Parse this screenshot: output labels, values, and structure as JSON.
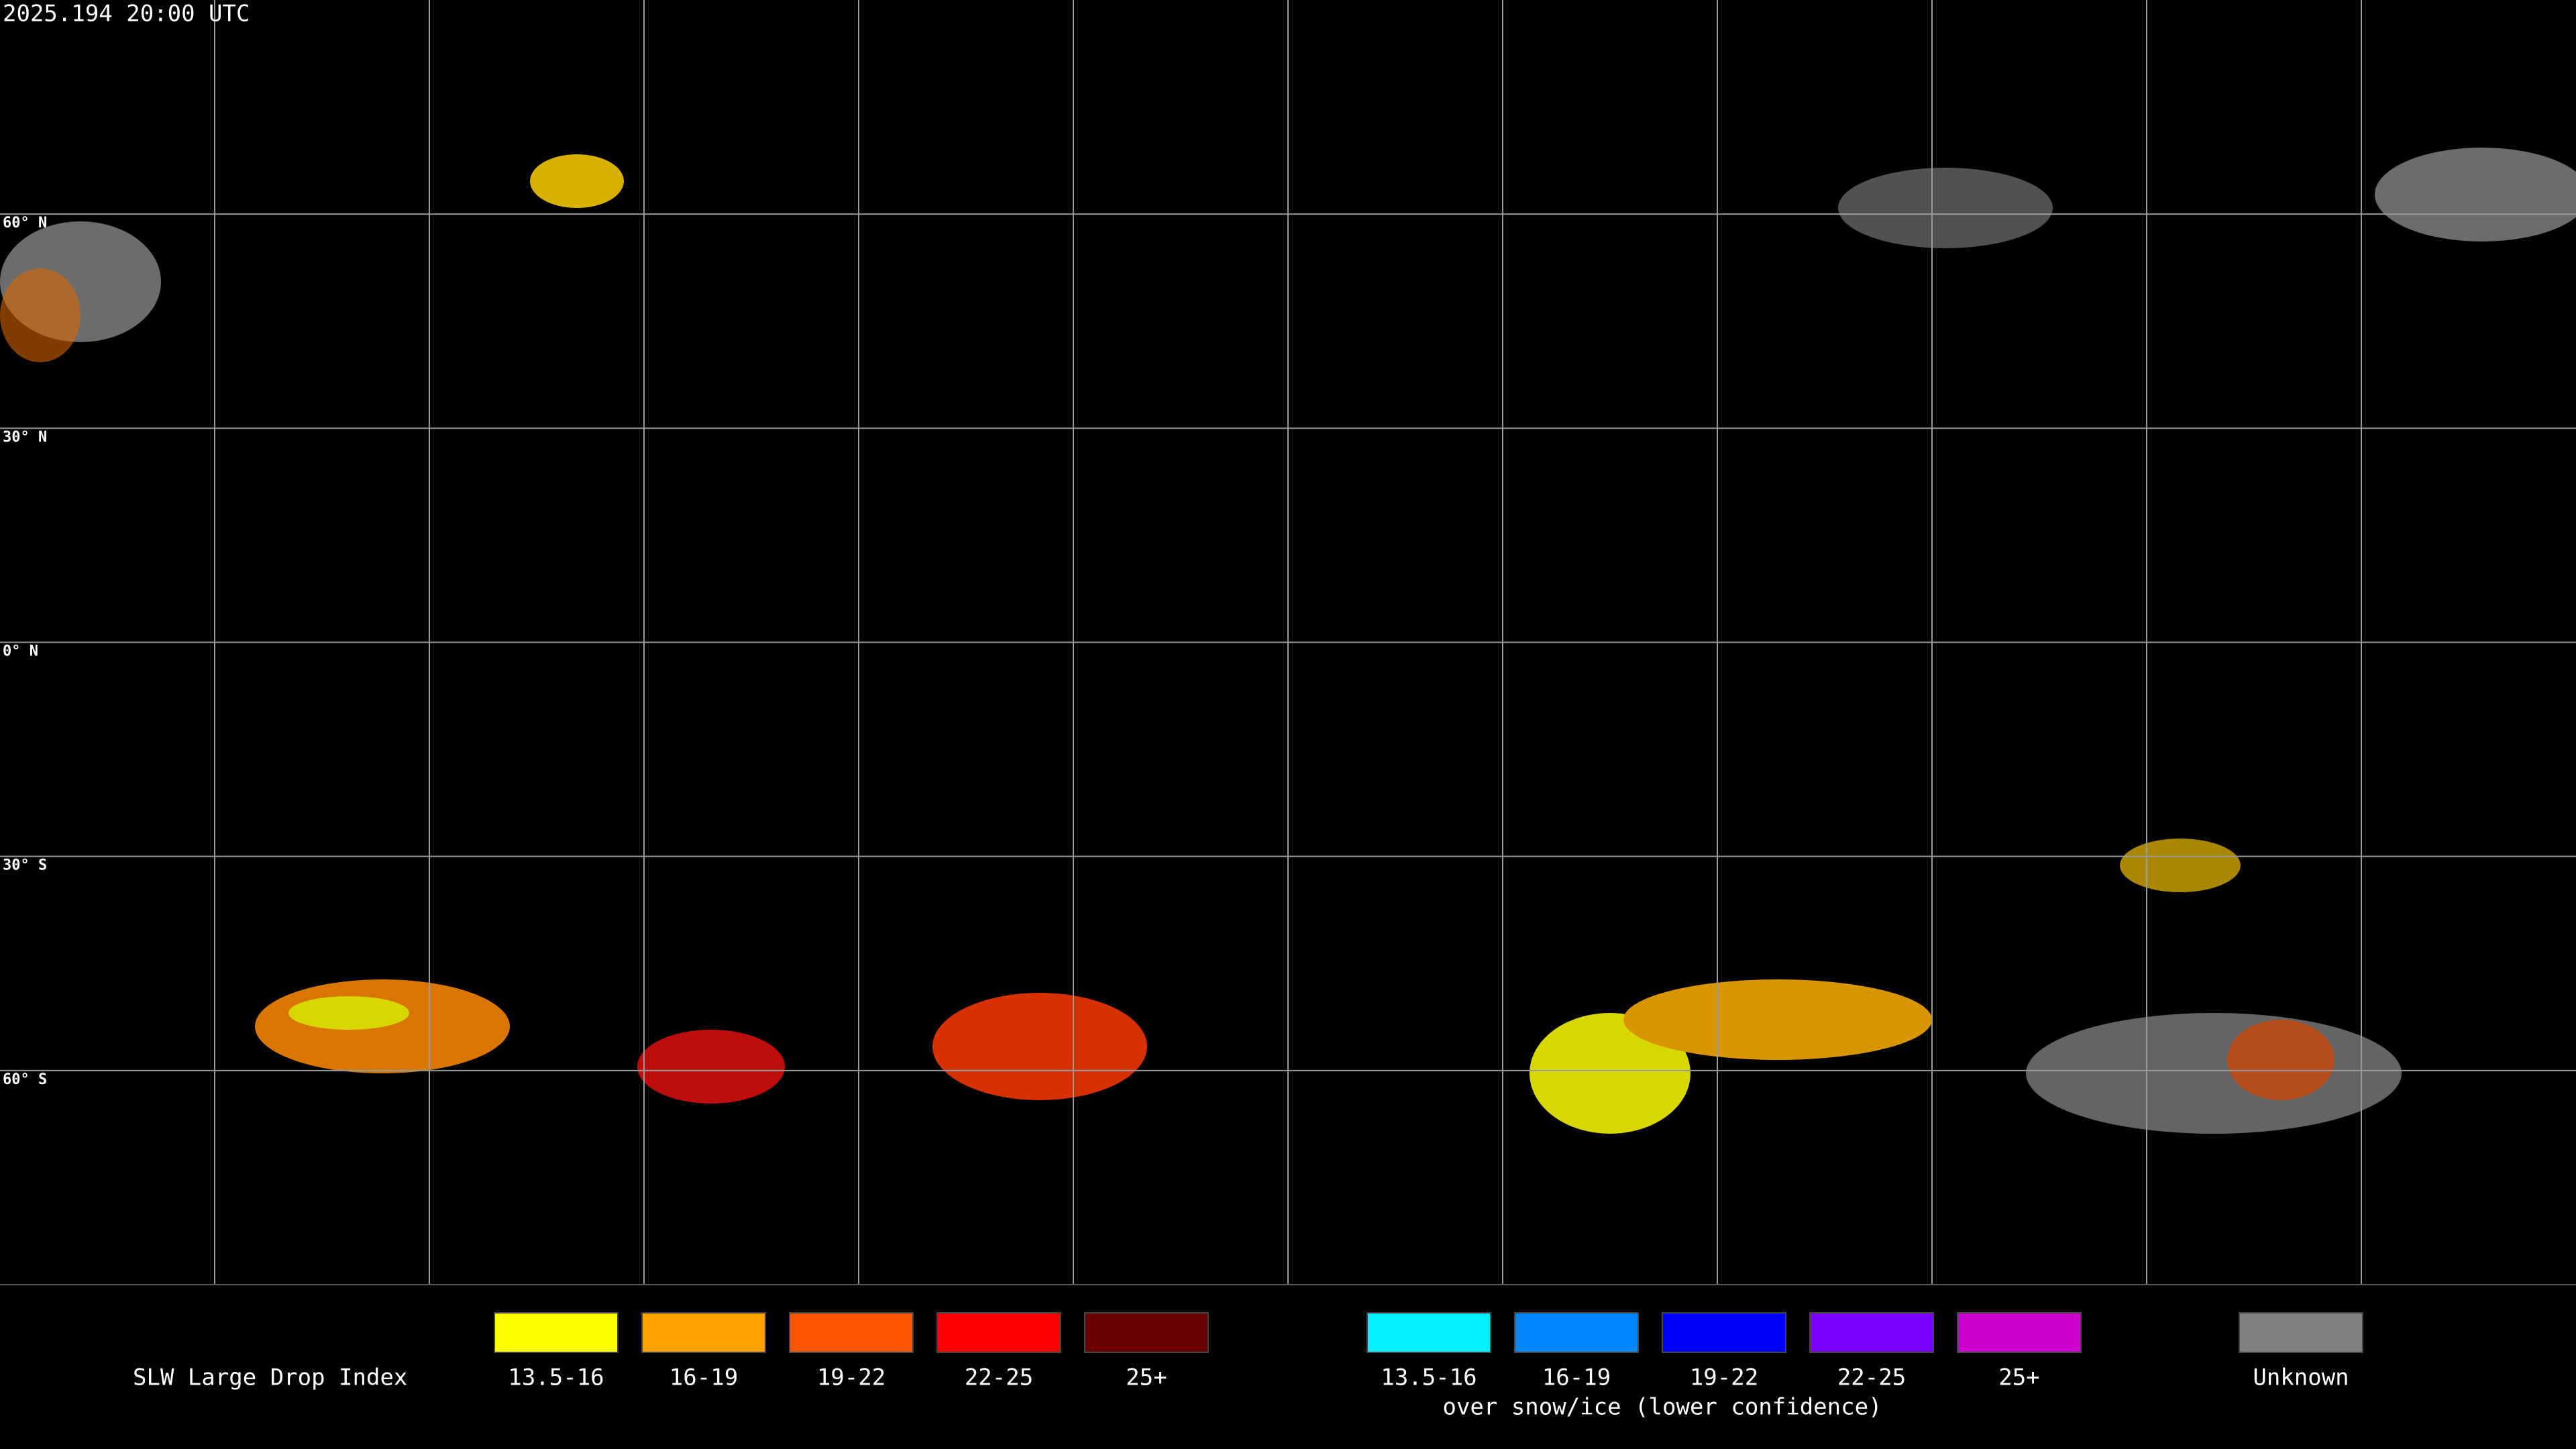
{
  "header": {
    "timestamp": "2025.194 20:00 UTC"
  },
  "latitude_labels": [
    "60° N",
    "30° N",
    "0° N",
    "30° S",
    "60° S"
  ],
  "legend": {
    "title": "SLW Large Drop Index",
    "items": [
      {
        "label": "13.5-16",
        "color": "#ffff00"
      },
      {
        "label": "16-19",
        "color": "#ffa000"
      },
      {
        "label": "19-22",
        "color": "#ff5500"
      },
      {
        "label": "22-25",
        "color": "#ff0000"
      },
      {
        "label": "25+",
        "color": "#6a0000"
      }
    ],
    "snow_items": [
      {
        "label": "13.5-16",
        "color": "#00f0ff"
      },
      {
        "label": "16-19",
        "color": "#0088ff"
      },
      {
        "label": "19-22",
        "color": "#0000ff"
      },
      {
        "label": "22-25",
        "color": "#7a00ff"
      },
      {
        "label": "25+",
        "color": "#cc00cc"
      }
    ],
    "snow_note": "over snow/ice (lower confidence)",
    "unknown": {
      "label": "Unknown",
      "color": "#808080"
    }
  }
}
